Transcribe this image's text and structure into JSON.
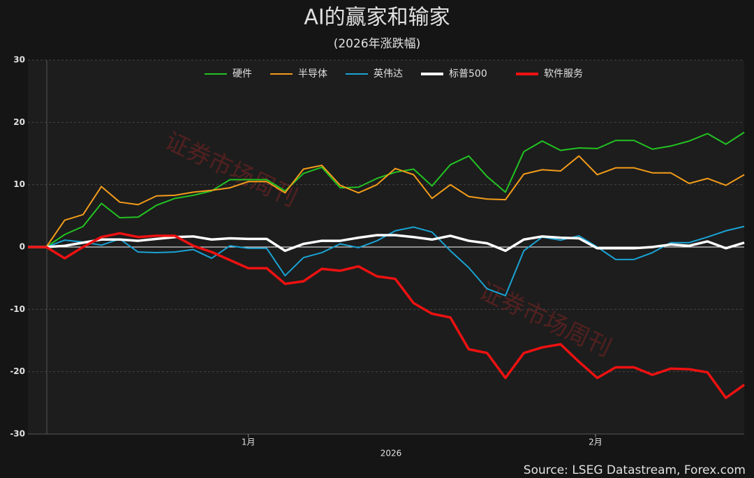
{
  "chart_data": {
    "type": "line",
    "title": "AI的赢家和输家",
    "subtitle": "(2026年涨跌幅)",
    "x_label": "2026",
    "source": "Source: LSEG Datastream, Forex.com",
    "watermark": "证券市场周刊",
    "x": [
      0,
      1,
      2,
      3,
      4,
      5,
      6,
      7,
      8,
      9,
      10,
      11,
      12,
      13,
      14,
      15,
      16,
      17,
      18,
      19,
      20,
      21,
      22,
      23,
      24,
      25,
      26,
      27,
      28,
      29,
      30,
      31,
      32,
      33,
      34,
      35,
      36,
      37,
      38,
      39
    ],
    "xlim": [
      0,
      39
    ],
    "xticks": [
      {
        "value": 12,
        "label": "1月"
      },
      {
        "value": 30.9,
        "label": "2月"
      }
    ],
    "ylim": [
      -30,
      30
    ],
    "yticks": [
      -30,
      -20,
      -10,
      0,
      10,
      20,
      30
    ],
    "grid": true,
    "legend": "top",
    "series": [
      {
        "name": "硬件",
        "color": "#22c322",
        "values": [
          0,
          0,
          2,
          3.3,
          7,
          4.7,
          4.8,
          6.7,
          7.8,
          8.3,
          9,
          10.8,
          10.8,
          10.8,
          9,
          11.8,
          12.8,
          9.5,
          9.6,
          11,
          12,
          12.5,
          9.8,
          13.2,
          14.6,
          11.3,
          8.8,
          15.3,
          17,
          15.5,
          15.9,
          15.8,
          17.1,
          17.1,
          15.7,
          16.2,
          17,
          18.2,
          16.5,
          18.4
        ]
      },
      {
        "name": "半导体",
        "color": "#f39c1a",
        "values": [
          0,
          0,
          4.3,
          5.2,
          9.7,
          7.2,
          6.8,
          8.2,
          8.3,
          8.8,
          9.1,
          9.5,
          10.5,
          10.5,
          8.7,
          12.5,
          13.1,
          9.9,
          8.7,
          10,
          12.6,
          11.6,
          7.8,
          10,
          8.1,
          7.7,
          7.6,
          11.7,
          12.4,
          12.2,
          14.6,
          11.6,
          12.7,
          12.7,
          11.9,
          11.9,
          10.2,
          11,
          9.9,
          11.6
        ]
      },
      {
        "name": "英伟达",
        "color": "#1aa3d4",
        "values": [
          0,
          0,
          1.1,
          0.8,
          0.3,
          1.3,
          -0.8,
          -0.9,
          -0.8,
          -0.4,
          -1.8,
          0.2,
          -0.2,
          -0.2,
          -4.6,
          -1.7,
          -0.9,
          0.5,
          -0.1,
          1,
          2.6,
          3.2,
          2.4,
          -0.6,
          -3.3,
          -6.7,
          -7.8,
          -0.6,
          1.6,
          1.1,
          1.8,
          0,
          -2,
          -2,
          -0.9,
          0.7,
          0.7,
          1.6,
          2.6,
          3.3
        ]
      },
      {
        "name": "标普500",
        "color": "#ffffff",
        "values": [
          0,
          0,
          0.2,
          0.7,
          1.2,
          1.2,
          1,
          1.3,
          1.6,
          1.7,
          1.2,
          1.4,
          1.3,
          1.3,
          -0.6,
          0.5,
          1,
          1,
          1.5,
          1.9,
          1.9,
          1.6,
          1.2,
          1.8,
          1,
          0.6,
          -0.6,
          1.2,
          1.7,
          1.5,
          1.4,
          -0.2,
          -0.2,
          -0.2,
          0,
          0.4,
          0.2,
          0.9,
          -0.2,
          0.7
        ]
      },
      {
        "name": "软件服务",
        "color": "#ee1111",
        "values": [
          0,
          0,
          -1.8,
          0,
          1.6,
          2.2,
          1.6,
          1.8,
          1.8,
          0.2,
          -0.8,
          -2.1,
          -3.4,
          -3.4,
          -5.9,
          -5.5,
          -3.5,
          -3.8,
          -3.1,
          -4.7,
          -5.1,
          -9,
          -10.7,
          -11.3,
          -16.4,
          -17,
          -21,
          -17,
          -16.1,
          -15.6,
          -18.4,
          -21,
          -19.3,
          -19.3,
          -20.5,
          -19.5,
          -19.6,
          -20.1,
          -24.2,
          -22.1
        ]
      }
    ]
  }
}
